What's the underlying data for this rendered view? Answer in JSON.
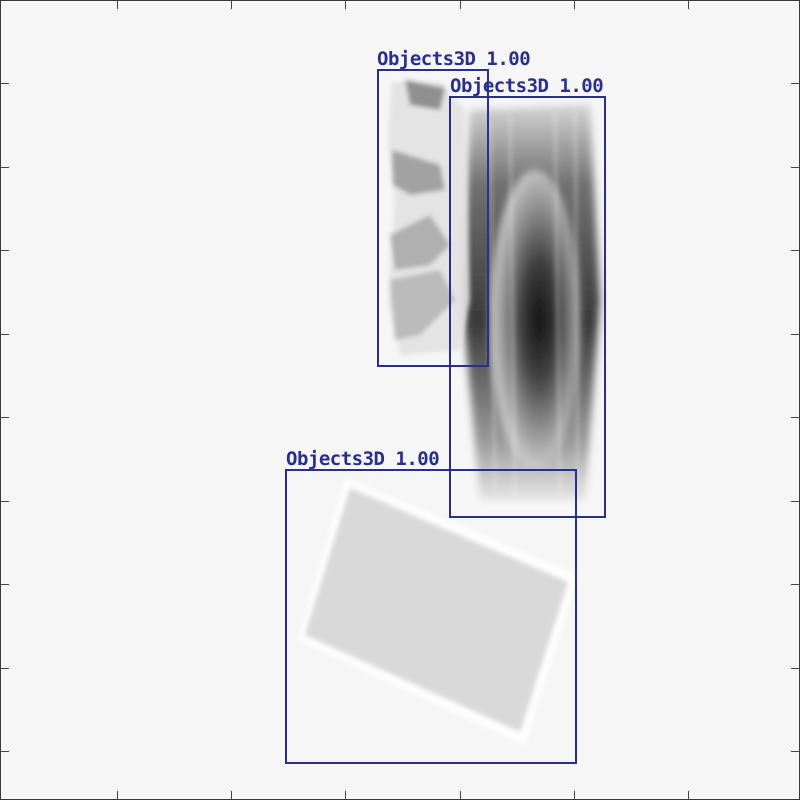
{
  "scene": {
    "background": "#f6f6f6",
    "box_color": "#2a2f8c"
  },
  "detections": [
    {
      "label": "Objects3D 1.00",
      "object": "tool-in-sheath"
    },
    {
      "label": "Objects3D 1.00",
      "object": "dense-cylindrical-object"
    },
    {
      "label": "Objects3D 1.00",
      "object": "rectangular-block"
    }
  ]
}
